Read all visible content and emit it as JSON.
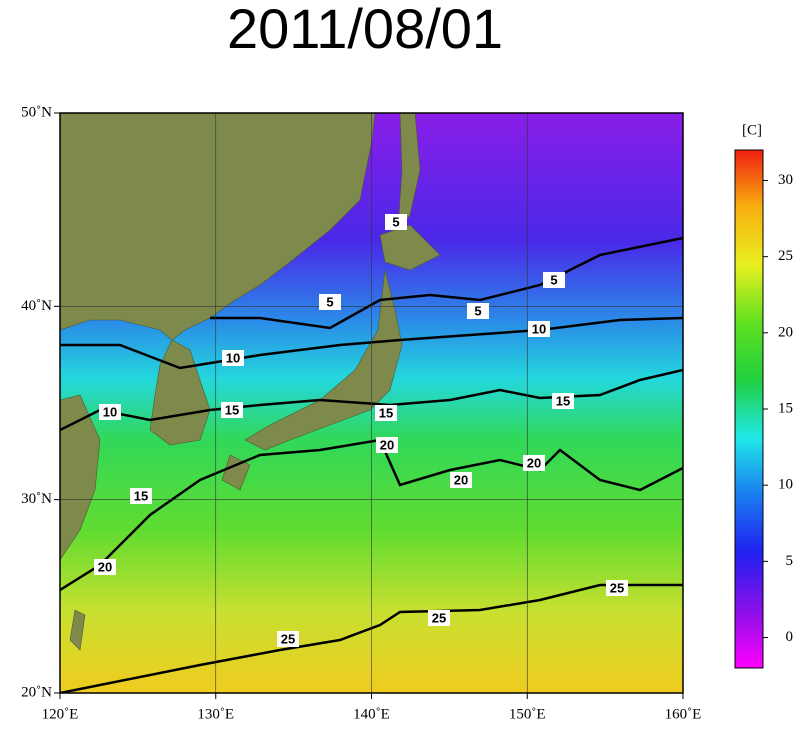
{
  "title": "2011/08/01",
  "map": {
    "lon_ticks": [
      {
        "value": 120,
        "label": "120˚E"
      },
      {
        "value": 130,
        "label": "130˚E"
      },
      {
        "value": 140,
        "label": "140˚E"
      },
      {
        "value": 150,
        "label": "150˚E"
      },
      {
        "value": 160,
        "label": "160˚E"
      }
    ],
    "lat_ticks": [
      {
        "value": 20,
        "label": "20˚N"
      },
      {
        "value": 30,
        "label": "30˚N"
      },
      {
        "value": 40,
        "label": "40˚N"
      },
      {
        "value": 50,
        "label": "50˚N"
      }
    ],
    "lonlim": [
      120,
      160
    ],
    "latlim": [
      20,
      50
    ]
  },
  "colorbar": {
    "label": "[C]",
    "lim": [
      -2,
      32
    ],
    "ticks": [
      0,
      5,
      10,
      15,
      20,
      25,
      30
    ],
    "colors": [
      "#ff00ff",
      "#8a10e8",
      "#2020f0",
      "#1a7cf0",
      "#20e8e8",
      "#20d040",
      "#60e020",
      "#e8f020",
      "#f8b010",
      "#f02010"
    ]
  },
  "contour_labels": [
    5,
    5,
    5,
    5,
    10,
    10,
    10,
    15,
    15,
    15,
    15,
    20,
    20,
    20,
    20,
    25,
    25,
    25
  ]
}
